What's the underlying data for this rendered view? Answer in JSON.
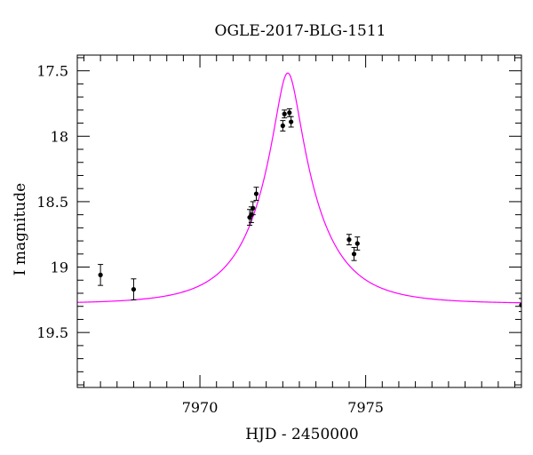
{
  "chart_data": {
    "type": "scatter",
    "title": "OGLE-2017-BLG-1511",
    "xlabel": "HJD - 2450000",
    "ylabel": "I magnitude",
    "xlim": [
      7966.3,
      7979.7
    ],
    "ylim": [
      19.92,
      17.38
    ],
    "y_inverted": true,
    "x_major_ticks": [
      7970,
      7975
    ],
    "x_minor_step": 0.5,
    "y_major_ticks": [
      17.5,
      18,
      18.5,
      19,
      19.5
    ],
    "y_minor_step": 0.1,
    "x_tick_labels": [
      "7970",
      "7975"
    ],
    "y_tick_labels": [
      "17.5",
      "18",
      "18.5",
      "19",
      "19.5"
    ],
    "grid": false,
    "model_color": "#ff00ff",
    "point_color": "#000000",
    "model": {
      "name": "",
      "t0": 7972.65,
      "u0": 0.2,
      "tE": 1.8,
      "base_mag": 19.28,
      "blend_fraction": 1.0
    },
    "points": [
      {
        "x": 7967.0,
        "y": 19.06,
        "err": 0.08
      },
      {
        "x": 7968.0,
        "y": 19.17,
        "err": 0.08
      },
      {
        "x": 7971.5,
        "y": 18.62,
        "err": 0.06
      },
      {
        "x": 7971.55,
        "y": 18.6,
        "err": 0.06
      },
      {
        "x": 7971.6,
        "y": 18.55,
        "err": 0.05
      },
      {
        "x": 7971.7,
        "y": 18.44,
        "err": 0.05
      },
      {
        "x": 7972.5,
        "y": 17.92,
        "err": 0.04
      },
      {
        "x": 7972.55,
        "y": 17.83,
        "err": 0.03
      },
      {
        "x": 7972.7,
        "y": 17.82,
        "err": 0.03
      },
      {
        "x": 7972.75,
        "y": 17.89,
        "err": 0.04
      },
      {
        "x": 7974.5,
        "y": 18.79,
        "err": 0.04
      },
      {
        "x": 7974.65,
        "y": 18.9,
        "err": 0.05
      },
      {
        "x": 7974.75,
        "y": 18.82,
        "err": 0.05
      },
      {
        "x": 7979.7,
        "y": 19.29,
        "err": 0.05
      }
    ]
  }
}
